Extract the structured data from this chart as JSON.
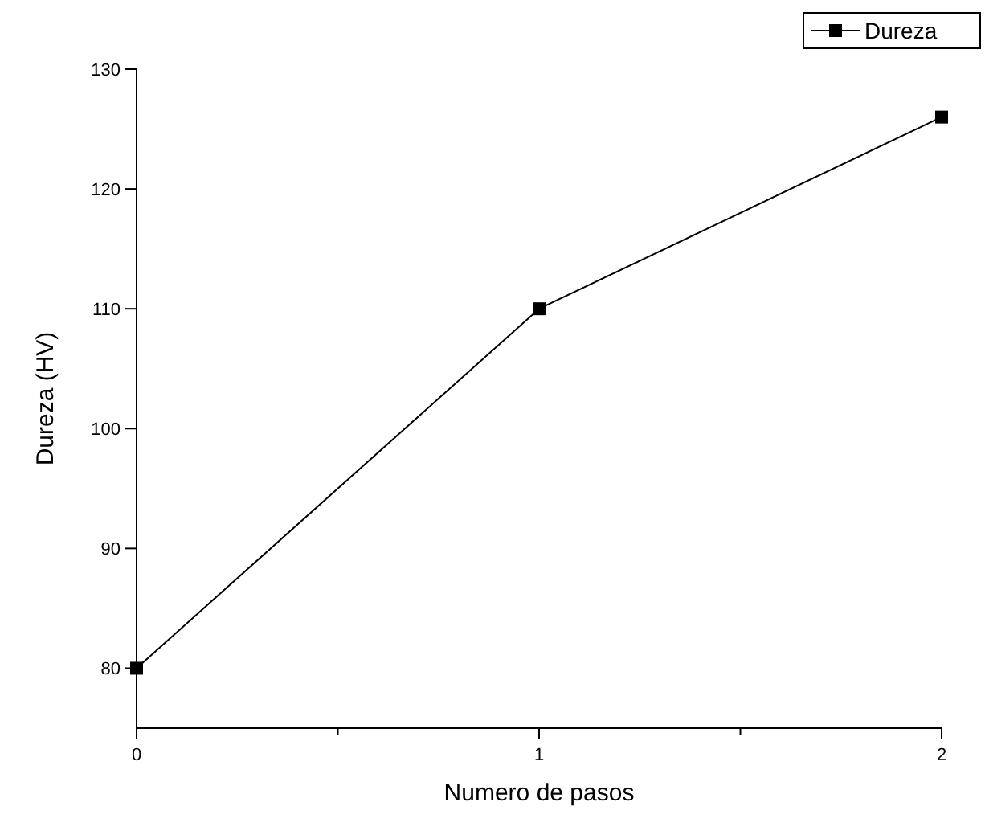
{
  "chart_data": {
    "type": "line",
    "xlabel": "Numero de pasos",
    "ylabel": "Dureza (HV)",
    "x": [
      0,
      1,
      2
    ],
    "series": [
      {
        "name": "Dureza",
        "color": "#000000",
        "values": [
          80,
          110,
          126
        ]
      }
    ],
    "xlim": [
      0,
      2
    ],
    "xticks": [
      0,
      {
        "value": 0.5,
        "label": null
      },
      1,
      {
        "value": 1.5,
        "label": null
      },
      2
    ],
    "ylim": [
      75,
      130
    ],
    "yticks": [
      80,
      90,
      100,
      110,
      120,
      130
    ],
    "grid": false,
    "legend": "top right",
    "marker": "square",
    "line_style": "solid"
  }
}
